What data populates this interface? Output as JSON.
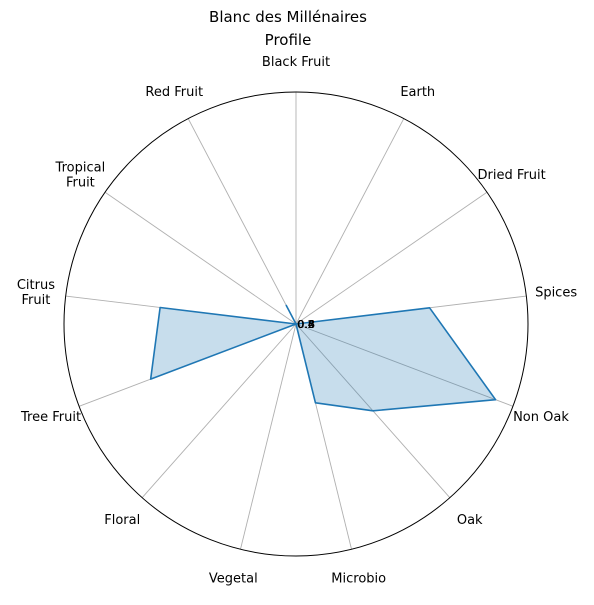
{
  "chart_data": {
    "type": "radar",
    "title": "Blanc des Millénaires\nProfile",
    "categories": [
      "Black Fruit",
      "Earth",
      "Dried Fruit",
      "Spices",
      "Non Oak",
      "Oak",
      "Microbio",
      "Vegetal",
      "Floral",
      "Tree Fruit",
      "Citrus Fruit",
      "Tropical Fruit",
      "Red Fruit"
    ],
    "category_display": [
      "Black Fruit",
      "Earth",
      "Dried Fruit",
      "Spices",
      "Non Oak",
      "Oak",
      "Microbio",
      "Vegetal",
      "Floral",
      "Tree Fruit",
      "Citrus\nFruit",
      "Tropical\nFruit",
      "Red Fruit"
    ],
    "series": [
      {
        "values": [
          0.0,
          0.0,
          0.0,
          0.58,
          0.92,
          0.5,
          0.35,
          0.0,
          0.0,
          0.67,
          0.59,
          0.0,
          0.09
        ]
      }
    ],
    "rlim": [
      0,
      1
    ],
    "radial_tick_labels": [
      "0.2",
      "0.4",
      "0.6",
      "0.8"
    ],
    "grid": true,
    "colors": {
      "line": "#1f77b4",
      "fill": "#1f77b4",
      "grid": "#b0b0b0",
      "frame": "#000000"
    }
  }
}
